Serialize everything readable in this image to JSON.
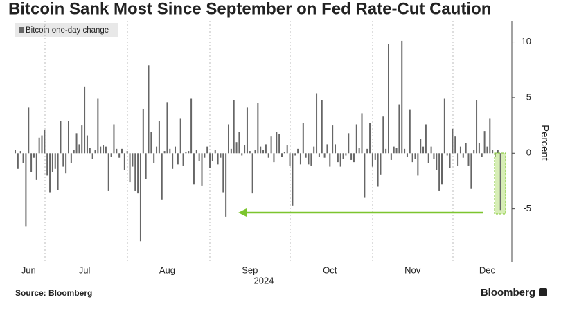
{
  "chart_data": {
    "type": "bar",
    "title": "Bitcoin Sank Most Since September on Fed Rate-Cut Caution",
    "legend_label": "Bitcoin one-day change",
    "y_axis_label": "Percent",
    "year_label": "2024",
    "source": "Source: Bloomberg",
    "brand": "Bloomberg",
    "color": "#666666",
    "ylim": [
      -9.75,
      11.9
    ],
    "yticks": [
      -5,
      0,
      5,
      10
    ],
    "categories": [
      null,
      null,
      null,
      null,
      null,
      "Jun",
      null,
      null,
      null,
      null,
      null,
      null,
      null,
      null,
      null,
      null,
      null,
      null,
      null,
      null,
      null,
      null,
      null,
      null,
      null,
      null,
      "Jul",
      null,
      null,
      null,
      null,
      null,
      null,
      null,
      null,
      null,
      null,
      null,
      null,
      null,
      null,
      null,
      null,
      null,
      null,
      null,
      null,
      null,
      null,
      null,
      null,
      null,
      null,
      null,
      null,
      null,
      null,
      "Aug",
      null,
      null,
      null,
      null,
      null,
      null,
      null,
      null,
      null,
      null,
      null,
      null,
      null,
      null,
      null,
      null,
      null,
      null,
      null,
      null,
      null,
      null,
      null,
      null,
      null,
      null,
      null,
      null,
      null,
      null,
      "Sep",
      null,
      null,
      null,
      null,
      null,
      null,
      null,
      null,
      null,
      null,
      null,
      null,
      null,
      null,
      null,
      null,
      null,
      null,
      null,
      null,
      null,
      null,
      null,
      null,
      null,
      null,
      null,
      null,
      null,
      "Oct",
      null,
      null,
      null,
      null,
      null,
      null,
      null,
      null,
      null,
      null,
      null,
      null,
      null,
      null,
      null,
      null,
      null,
      null,
      null,
      null,
      null,
      null,
      null,
      null,
      null,
      null,
      null,
      null,
      null,
      null,
      "Nov",
      null,
      null,
      null,
      null,
      null,
      null,
      null,
      null,
      null,
      null,
      null,
      null,
      null,
      null,
      null,
      null,
      null,
      null,
      null,
      null,
      null,
      null,
      null,
      null,
      null,
      null,
      null,
      "Dec",
      null,
      null,
      null,
      null,
      null
    ],
    "values": [
      0.3,
      -1.4,
      0.2,
      -0.9,
      -6.6,
      4.1,
      -1.7,
      -0.4,
      -2.4,
      1.4,
      1.6,
      2.1,
      -2.0,
      -3.5,
      -1.7,
      -1.4,
      -3.3,
      2.9,
      -1.2,
      -1.8,
      2.9,
      -0.9,
      0.3,
      1.8,
      0.8,
      2.5,
      6.0,
      1.6,
      0.5,
      -0.5,
      0.3,
      4.9,
      0.6,
      0.7,
      0.6,
      -3.4,
      -0.3,
      2.6,
      0.4,
      -0.4,
      0.4,
      -1.5,
      0.2,
      -2.6,
      -1.2,
      -3.4,
      -3.6,
      -7.9,
      4.0,
      -2.3,
      7.9,
      1.9,
      -0.9,
      0.6,
      2.9,
      -4.2,
      0.2,
      4.6,
      0.4,
      -1.4,
      0.6,
      -1.0,
      3.1,
      -1.1,
      0.1,
      0.2,
      4.9,
      -2.8,
      0.3,
      -0.7,
      -2.9,
      -0.4,
      0.6,
      -1.3,
      -0.7,
      0.3,
      -1.0,
      -0.4,
      -3.5,
      -5.7,
      2.6,
      0.4,
      4.8,
      1.0,
      1.9,
      -0.2,
      0.7,
      4.1,
      0.2,
      -3.6,
      0.3,
      4.5,
      0.6,
      0.3,
      0.8,
      -0.4,
      1.5,
      -0.8,
      1.9,
      1.7,
      -0.3,
      0.1,
      0.7,
      -1.1,
      -4.7,
      -0.2,
      0.4,
      -1.0,
      2.7,
      -0.4,
      -1.0,
      -1.1,
      0.6,
      5.4,
      -0.3,
      4.8,
      -0.4,
      0.8,
      -1.2,
      2.5,
      0.8,
      -0.8,
      -1.2,
      -0.5,
      -0.2,
      1.8,
      -0.6,
      -0.8,
      2.6,
      0.5,
      3.6,
      -4.0,
      0.4,
      2.7,
      -1.2,
      -0.6,
      -3.0,
      -1.9,
      3.3,
      0.4,
      9.8,
      -0.6,
      0.6,
      0.5,
      4.4,
      10.1,
      0.4,
      -0.3,
      3.9,
      -0.8,
      -0.5,
      -2.0,
      1.3,
      0.6,
      2.6,
      -0.9,
      0.6,
      -0.5,
      -1.5,
      -3.4,
      -2.8,
      4.9,
      -0.2,
      -1.3,
      2.2,
      1.5,
      -1.1,
      0.6,
      -0.4,
      0.9,
      -1.1,
      -3.2,
      0.3,
      4.8,
      0.9,
      -0.3,
      2.0,
      0.6,
      3.1,
      0.3,
      -0.3,
      0.3,
      -5.1
    ]
  }
}
